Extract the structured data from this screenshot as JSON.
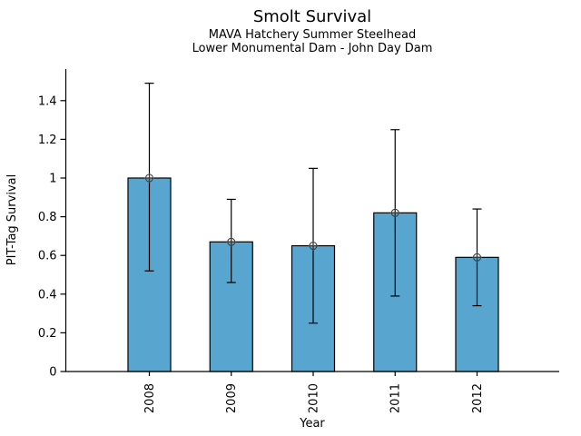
{
  "chart_data": {
    "type": "bar",
    "title": "Smolt Survival",
    "subtitle1": "MAVA Hatchery Summer Steelhead",
    "subtitle2": "Lower Monumental Dam - John Day Dam",
    "xlabel": "Year",
    "ylabel": "PIT-Tag Survival",
    "categories": [
      "2008",
      "2009",
      "2010",
      "2011",
      "2012"
    ],
    "values": [
      1.0,
      0.67,
      0.65,
      0.82,
      0.59
    ],
    "error_low": [
      0.52,
      0.46,
      0.25,
      0.39,
      0.34
    ],
    "error_high": [
      1.49,
      0.89,
      1.05,
      1.25,
      0.84
    ],
    "ylim": [
      0,
      1.56
    ],
    "yticks": [
      0,
      0.2,
      0.4,
      0.6,
      0.8,
      1,
      1.2,
      1.4
    ],
    "ytick_labels": [
      "0",
      "0.2",
      "0.4",
      "0.6",
      "0.8",
      "1",
      "1.2",
      "1.4"
    ],
    "grid": false,
    "legend": null,
    "bar_color": "#58A6CF",
    "bar_edge_color": "#000000",
    "error_bar_color": "#000000",
    "marker": "circle-plus",
    "marker_color": "#3d3d3d",
    "axis_color": "#000000"
  }
}
